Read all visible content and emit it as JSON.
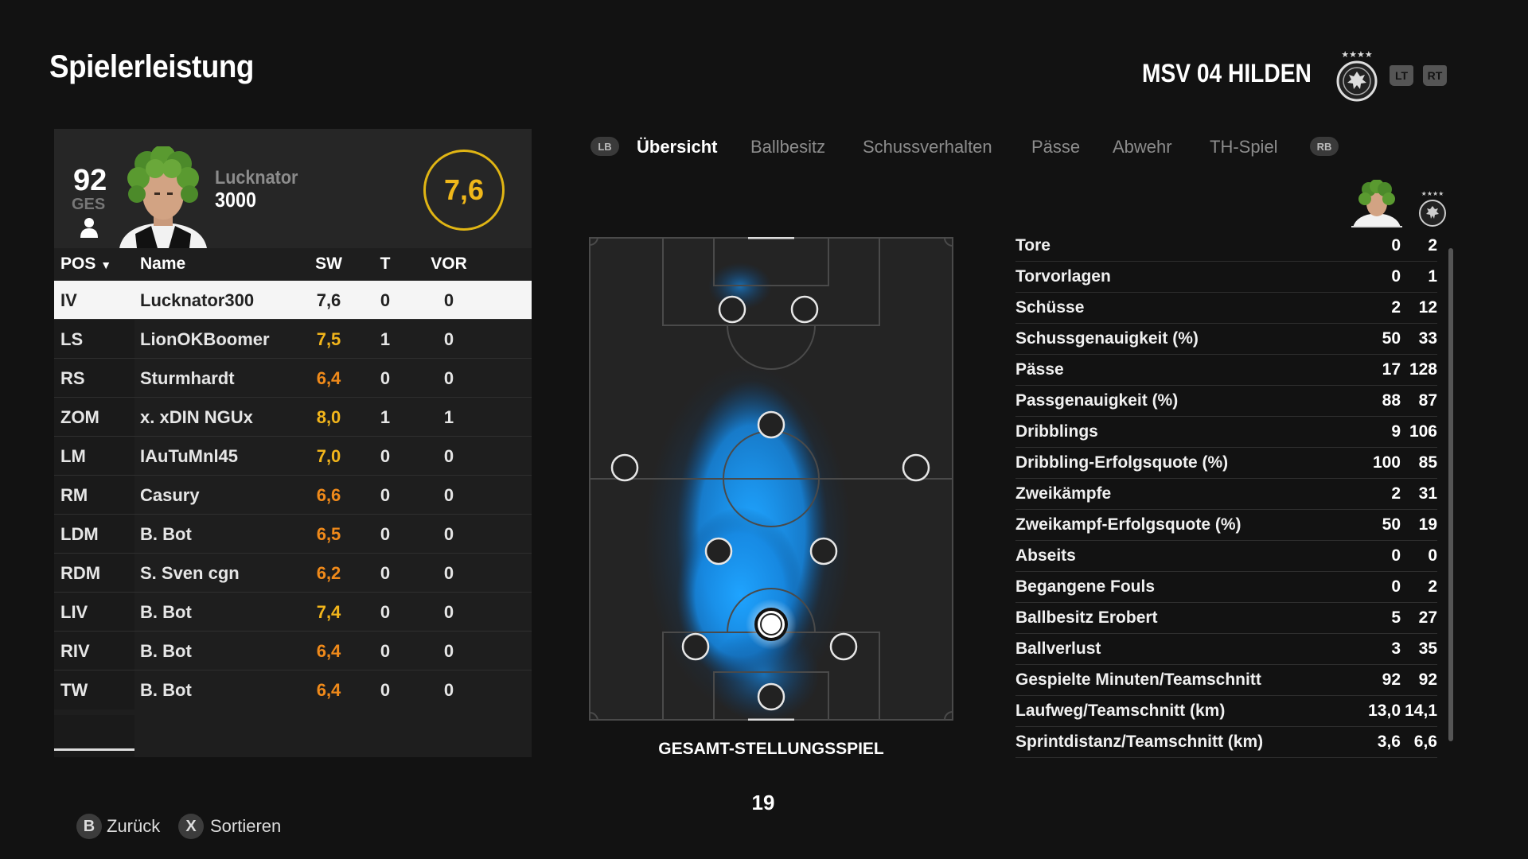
{
  "header": {
    "title": "Spielerleistung",
    "club": "MSV 04 HILDEN",
    "lt": "LT",
    "rt": "RT"
  },
  "player_card": {
    "overall": "92",
    "overall_label": "GES",
    "name_line1": "Lucknator",
    "name_line2": "3000",
    "rating": "7,6",
    "rating_color": "#f0b81a"
  },
  "table": {
    "headers": {
      "pos": "POS",
      "name": "Name",
      "sw": "SW",
      "t": "T",
      "vor": "VOR"
    },
    "rows": [
      {
        "pos": "IV",
        "name": "Lucknator300",
        "sw": "7,6",
        "t": "0",
        "vor": "0"
      },
      {
        "pos": "LS",
        "name": "LionOKBoomer",
        "sw": "7,5",
        "t": "1",
        "vor": "0"
      },
      {
        "pos": "RS",
        "name": "Sturmhardt",
        "sw": "6,4",
        "t": "0",
        "vor": "0"
      },
      {
        "pos": "ZOM",
        "name": "x. xDIN NGUx",
        "sw": "8,0",
        "t": "1",
        "vor": "1"
      },
      {
        "pos": "LM",
        "name": "IAuTuMnl45",
        "sw": "7,0",
        "t": "0",
        "vor": "0"
      },
      {
        "pos": "RM",
        "name": "Casury",
        "sw": "6,6",
        "t": "0",
        "vor": "0"
      },
      {
        "pos": "LDM",
        "name": "B. Bot",
        "sw": "6,5",
        "t": "0",
        "vor": "0"
      },
      {
        "pos": "RDM",
        "name": "S. Sven cgn",
        "sw": "6,2",
        "t": "0",
        "vor": "0"
      },
      {
        "pos": "LIV",
        "name": "B. Bot",
        "sw": "7,4",
        "t": "0",
        "vor": "0"
      },
      {
        "pos": "RIV",
        "name": "B. Bot",
        "sw": "6,4",
        "t": "0",
        "vor": "0"
      },
      {
        "pos": "TW",
        "name": "B. Bot",
        "sw": "6,4",
        "t": "0",
        "vor": "0"
      }
    ],
    "rating_color_high": "#f2b51b",
    "rating_color_mid": "#f08a1a"
  },
  "tabs": {
    "lb": "LB",
    "rb": "RB",
    "items": [
      "Übersicht",
      "Ballbesitz",
      "Schussverhalten",
      "Pässe",
      "Abwehr",
      "TH-Spiel"
    ],
    "active": "Übersicht"
  },
  "pitch": {
    "caption": "GESAMT-STELLUNGSSPIEL",
    "heat_color": "#1e9bf5"
  },
  "page_number": "19",
  "stats": [
    {
      "label": "Tore",
      "player": "0",
      "team": "2"
    },
    {
      "label": "Torvorlagen",
      "player": "0",
      "team": "1"
    },
    {
      "label": "Schüsse",
      "player": "2",
      "team": "12"
    },
    {
      "label": "Schussgenauigkeit (%)",
      "player": "50",
      "team": "33"
    },
    {
      "label": "Pässe",
      "player": "17",
      "team": "128"
    },
    {
      "label": "Passgenauigkeit (%)",
      "player": "88",
      "team": "87"
    },
    {
      "label": "Dribblings",
      "player": "9",
      "team": "106"
    },
    {
      "label": "Dribbling-Erfolgsquote (%)",
      "player": "100",
      "team": "85"
    },
    {
      "label": "Zweikämpfe",
      "player": "2",
      "team": "31"
    },
    {
      "label": "Zweikampf-Erfolgsquote (%)",
      "player": "50",
      "team": "19"
    },
    {
      "label": "Abseits",
      "player": "0",
      "team": "0"
    },
    {
      "label": "Begangene Fouls",
      "player": "0",
      "team": "2"
    },
    {
      "label": "Ballbesitz Erobert",
      "player": "5",
      "team": "27"
    },
    {
      "label": "Ballverlust",
      "player": "3",
      "team": "35"
    },
    {
      "label": "Gespielte Minuten/Teamschnitt",
      "player": "92",
      "team": "92"
    },
    {
      "label": "Laufweg/Teamschnitt (km)",
      "player": "13,0",
      "team": "14,1"
    },
    {
      "label": "Sprintdistanz/Teamschnitt (km)",
      "player": "3,6",
      "team": "6,6"
    }
  ],
  "footer": {
    "back_key": "B",
    "back_label": "Zurück",
    "sort_key": "X",
    "sort_label": "Sortieren"
  }
}
